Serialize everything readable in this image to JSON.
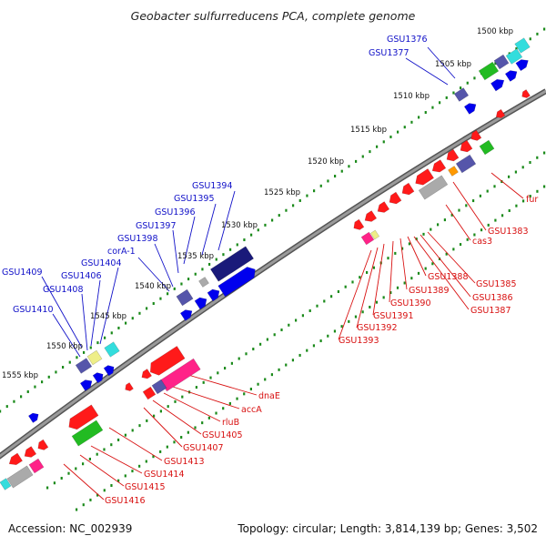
{
  "title": "Geobacter sulfurreducens PCA, complete genome",
  "footer": {
    "accession": "Accession: NC_002939",
    "topology": "Topology: circular; Length: 3,814,139 bp; Genes: 3,502"
  },
  "colors": {
    "backbone": "#808080",
    "tick_green": "#1a8a1a",
    "label_blue": "#1010c8",
    "label_red": "#d81010",
    "gene_red": "#ff1a1a",
    "gene_blue": "#0000ee",
    "gene_navy": "#1a1a7a",
    "gene_slate": "#5555aa",
    "gene_cyan": "#33dddd",
    "gene_green": "#22bb22",
    "gene_pink": "#ff2288",
    "gene_gray": "#aaaaaa",
    "gene_orange": "#ff9900",
    "gene_yellow": "#eeee88"
  },
  "kbp_labels": [
    "1500 kbp",
    "1505 kbp",
    "1510 kbp",
    "1515 kbp",
    "1520 kbp",
    "1525 kbp",
    "1530 kbp",
    "1535 kbp",
    "1540 kbp",
    "1545 kbp",
    "1550 kbp",
    "1555 kbp"
  ],
  "labels_blue": [
    "GSU1376",
    "GSU1377",
    "GSU1394",
    "GSU1395",
    "GSU1396",
    "GSU1397",
    "GSU1398",
    "corA-1",
    "GSU1404",
    "GSU1406",
    "GSU1409",
    "GSU1408",
    "GSU1410"
  ],
  "labels_red": [
    "fur",
    "GSU1383",
    "cas3",
    "GSU1385",
    "GSU1386",
    "GSU1387",
    "GSU1388",
    "GSU1389",
    "GSU1390",
    "GSU1391",
    "GSU1392",
    "GSU1393",
    "dnaE",
    "accA",
    "rluB",
    "GSU1405",
    "GSU1407",
    "GSU1413",
    "GSU1414",
    "GSU1415",
    "GSU1416"
  ]
}
